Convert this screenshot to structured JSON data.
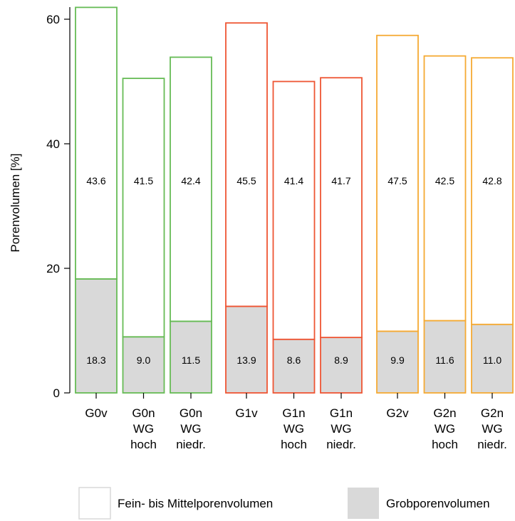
{
  "chart_data": {
    "type": "bar",
    "stacked": true,
    "title": "",
    "xlabel": "",
    "ylabel": "Porenvolumen [%]",
    "ylim": [
      0,
      62
    ],
    "yticks": [
      0,
      20,
      40,
      60
    ],
    "grid": false,
    "legend_position": "bottom",
    "groups": [
      {
        "color": "#66bb55",
        "bars": [
          {
            "label": [
              "G0v"
            ],
            "grob": 18.3,
            "fein": 43.6,
            "grob_label": "18.3",
            "fein_label": "43.6"
          },
          {
            "label": [
              "G0n",
              "WG",
              "hoch"
            ],
            "grob": 9.0,
            "fein": 41.5,
            "grob_label": "9.0",
            "fein_label": "41.5"
          },
          {
            "label": [
              "G0n",
              "WG",
              "niedr."
            ],
            "grob": 11.5,
            "fein": 42.4,
            "grob_label": "11.5",
            "fein_label": "42.4"
          }
        ]
      },
      {
        "color": "#ee5533",
        "bars": [
          {
            "label": [
              "G1v"
            ],
            "grob": 13.9,
            "fein": 45.5,
            "grob_label": "13.9",
            "fein_label": "45.5"
          },
          {
            "label": [
              "G1n",
              "WG",
              "hoch"
            ],
            "grob": 8.6,
            "fein": 41.4,
            "grob_label": "8.6",
            "fein_label": "41.4"
          },
          {
            "label": [
              "G1n",
              "WG",
              "niedr."
            ],
            "grob": 8.9,
            "fein": 41.7,
            "grob_label": "8.9",
            "fein_label": "41.7"
          }
        ]
      },
      {
        "color": "#f5aa33",
        "bars": [
          {
            "label": [
              "G2v"
            ],
            "grob": 9.9,
            "fein": 47.5,
            "grob_label": "9.9",
            "fein_label": "47.5"
          },
          {
            "label": [
              "G2n",
              "WG",
              "hoch"
            ],
            "grob": 11.6,
            "fein": 42.5,
            "grob_label": "11.6",
            "fein_label": "42.5"
          },
          {
            "label": [
              "G2n",
              "WG",
              "niedr."
            ],
            "grob": 11.0,
            "fein": 42.8,
            "grob_label": "11.0",
            "fein_label": "42.8"
          }
        ]
      }
    ],
    "series": [
      {
        "name": "Fein- bis Mittelporenvolumen",
        "fill": "#ffffff"
      },
      {
        "name": "Grobporenvolumen",
        "fill": "#d9d9d9"
      }
    ]
  }
}
